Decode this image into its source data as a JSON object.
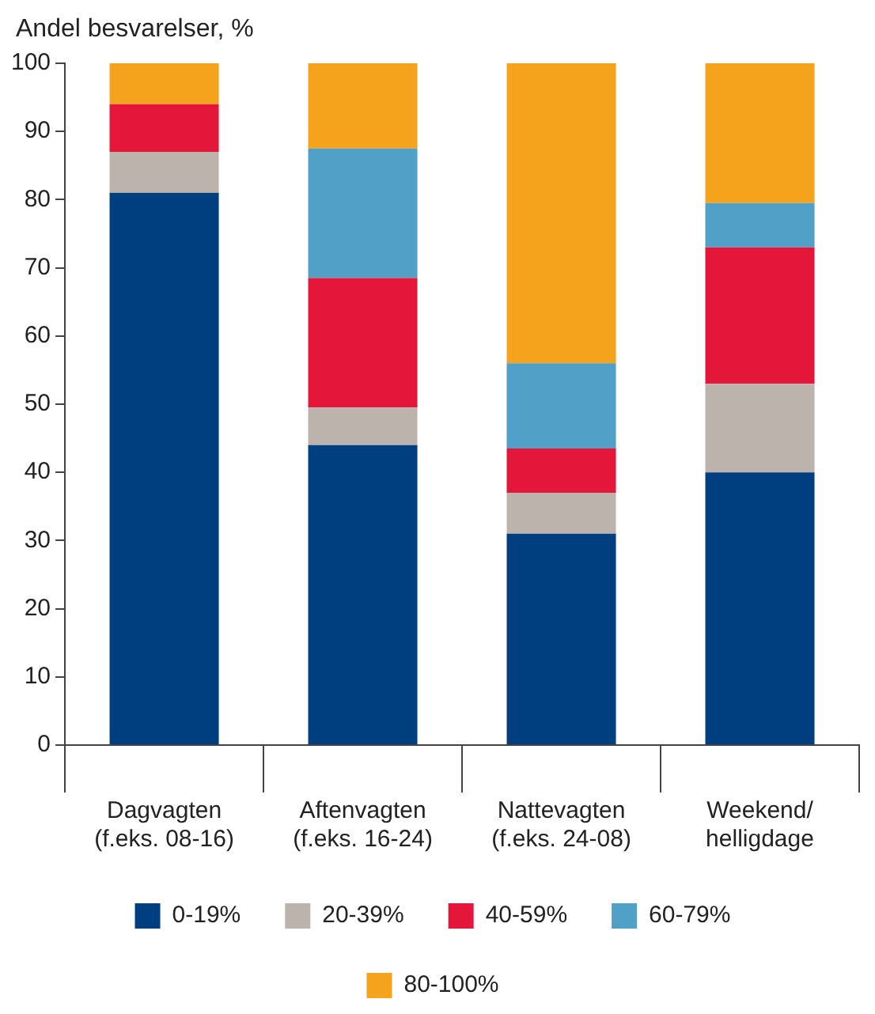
{
  "chart_data": {
    "type": "bar",
    "ylabel": "Andel besvarelser, %",
    "categories": [
      "Dagvagten\n(f.eks. 08-16)",
      "Aftenvagten\n(f.eks. 16-24)",
      "Nattevagten\n(f.eks. 24-08)",
      "Weekend/\nhelligdage"
    ],
    "stacked": true,
    "ylim": [
      0,
      100
    ],
    "yticks": [
      0,
      10,
      20,
      30,
      40,
      50,
      60,
      70,
      80,
      90,
      100
    ],
    "grid": false,
    "legend": "bottom",
    "series": [
      {
        "name": "0-19%",
        "color": "#003f7f",
        "values": [
          81,
          44,
          31,
          40
        ]
      },
      {
        "name": "20-39%",
        "color": "#bcb3ac",
        "values": [
          6,
          5.5,
          6,
          13
        ]
      },
      {
        "name": "40-59%",
        "color": "#e4173a",
        "values": [
          7,
          19,
          6.5,
          20
        ]
      },
      {
        "name": "60-79%",
        "color": "#50a0c8",
        "values": [
          0,
          19,
          12.5,
          6.5
        ]
      },
      {
        "name": "80-100%",
        "color": "#f5a31c",
        "values": [
          6,
          12.5,
          44,
          20.5
        ]
      }
    ]
  }
}
